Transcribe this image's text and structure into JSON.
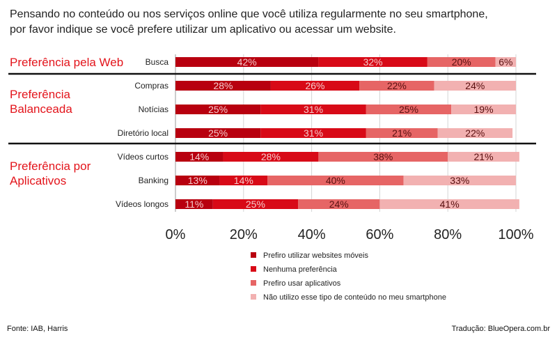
{
  "header": {
    "title_line1": "Pensando no conteúdo ou nos serviços online que você utiliza regularmente no seu smartphone,",
    "title_line2": "por favor indique se você prefere utilizar um aplicativo ou acessar um website."
  },
  "groups": [
    {
      "label_lines": [
        "Preferência pela Web"
      ]
    },
    {
      "label_lines": [
        "Preferência",
        "Balanceada"
      ]
    },
    {
      "label_lines": [
        "Preferência por",
        "Aplicativos"
      ]
    }
  ],
  "footer": {
    "source": "Fonte: IAB, Harris",
    "credit": "Tradução: BlueOpera.com.br"
  },
  "chart_data": {
    "type": "bar",
    "orientation": "horizontal",
    "stacked": true,
    "percent_stacked": true,
    "categories": [
      "Busca",
      "Compras",
      "Notícias",
      "Diretório local",
      "Vídeos curtos",
      "Banking",
      "Vídeos longos"
    ],
    "series": [
      {
        "name": "Prefiro utilizar websites móveis",
        "color": "#b8000f",
        "values": [
          42,
          28,
          25,
          25,
          14,
          13,
          11
        ],
        "labels": [
          "42%",
          "28%",
          "25%",
          "25%",
          "14%",
          "13%",
          "11%"
        ]
      },
      {
        "name": "Nenhuma preferência",
        "color": "#d80a17",
        "values": [
          32,
          26,
          31,
          31,
          28,
          14,
          25
        ],
        "labels": [
          "32%",
          "26%",
          "31%",
          "31%",
          "28%",
          "14%",
          "25%"
        ]
      },
      {
        "name": "Prefiro usar aplicativos",
        "color": "#e66565",
        "values": [
          20,
          22,
          25,
          21,
          38,
          40,
          24
        ],
        "labels": [
          "20%",
          "22%",
          "25%",
          "21%",
          "38%",
          "40%",
          "24%"
        ]
      },
      {
        "name": "Não utilizo esse tipo de conteúdo no meu smartphone",
        "color": "#f2b1b1",
        "values": [
          6,
          24,
          19,
          22,
          21,
          33,
          41
        ],
        "labels": [
          "6%",
          "24%",
          "19%",
          "22%",
          "21%",
          "33%",
          "41%"
        ]
      }
    ],
    "x_ticks": [
      "0%",
      "20%",
      "40%",
      "60%",
      "80%",
      "100%"
    ],
    "xlim": [
      0,
      100
    ],
    "grid": "vertical",
    "legend_position": "bottom"
  }
}
